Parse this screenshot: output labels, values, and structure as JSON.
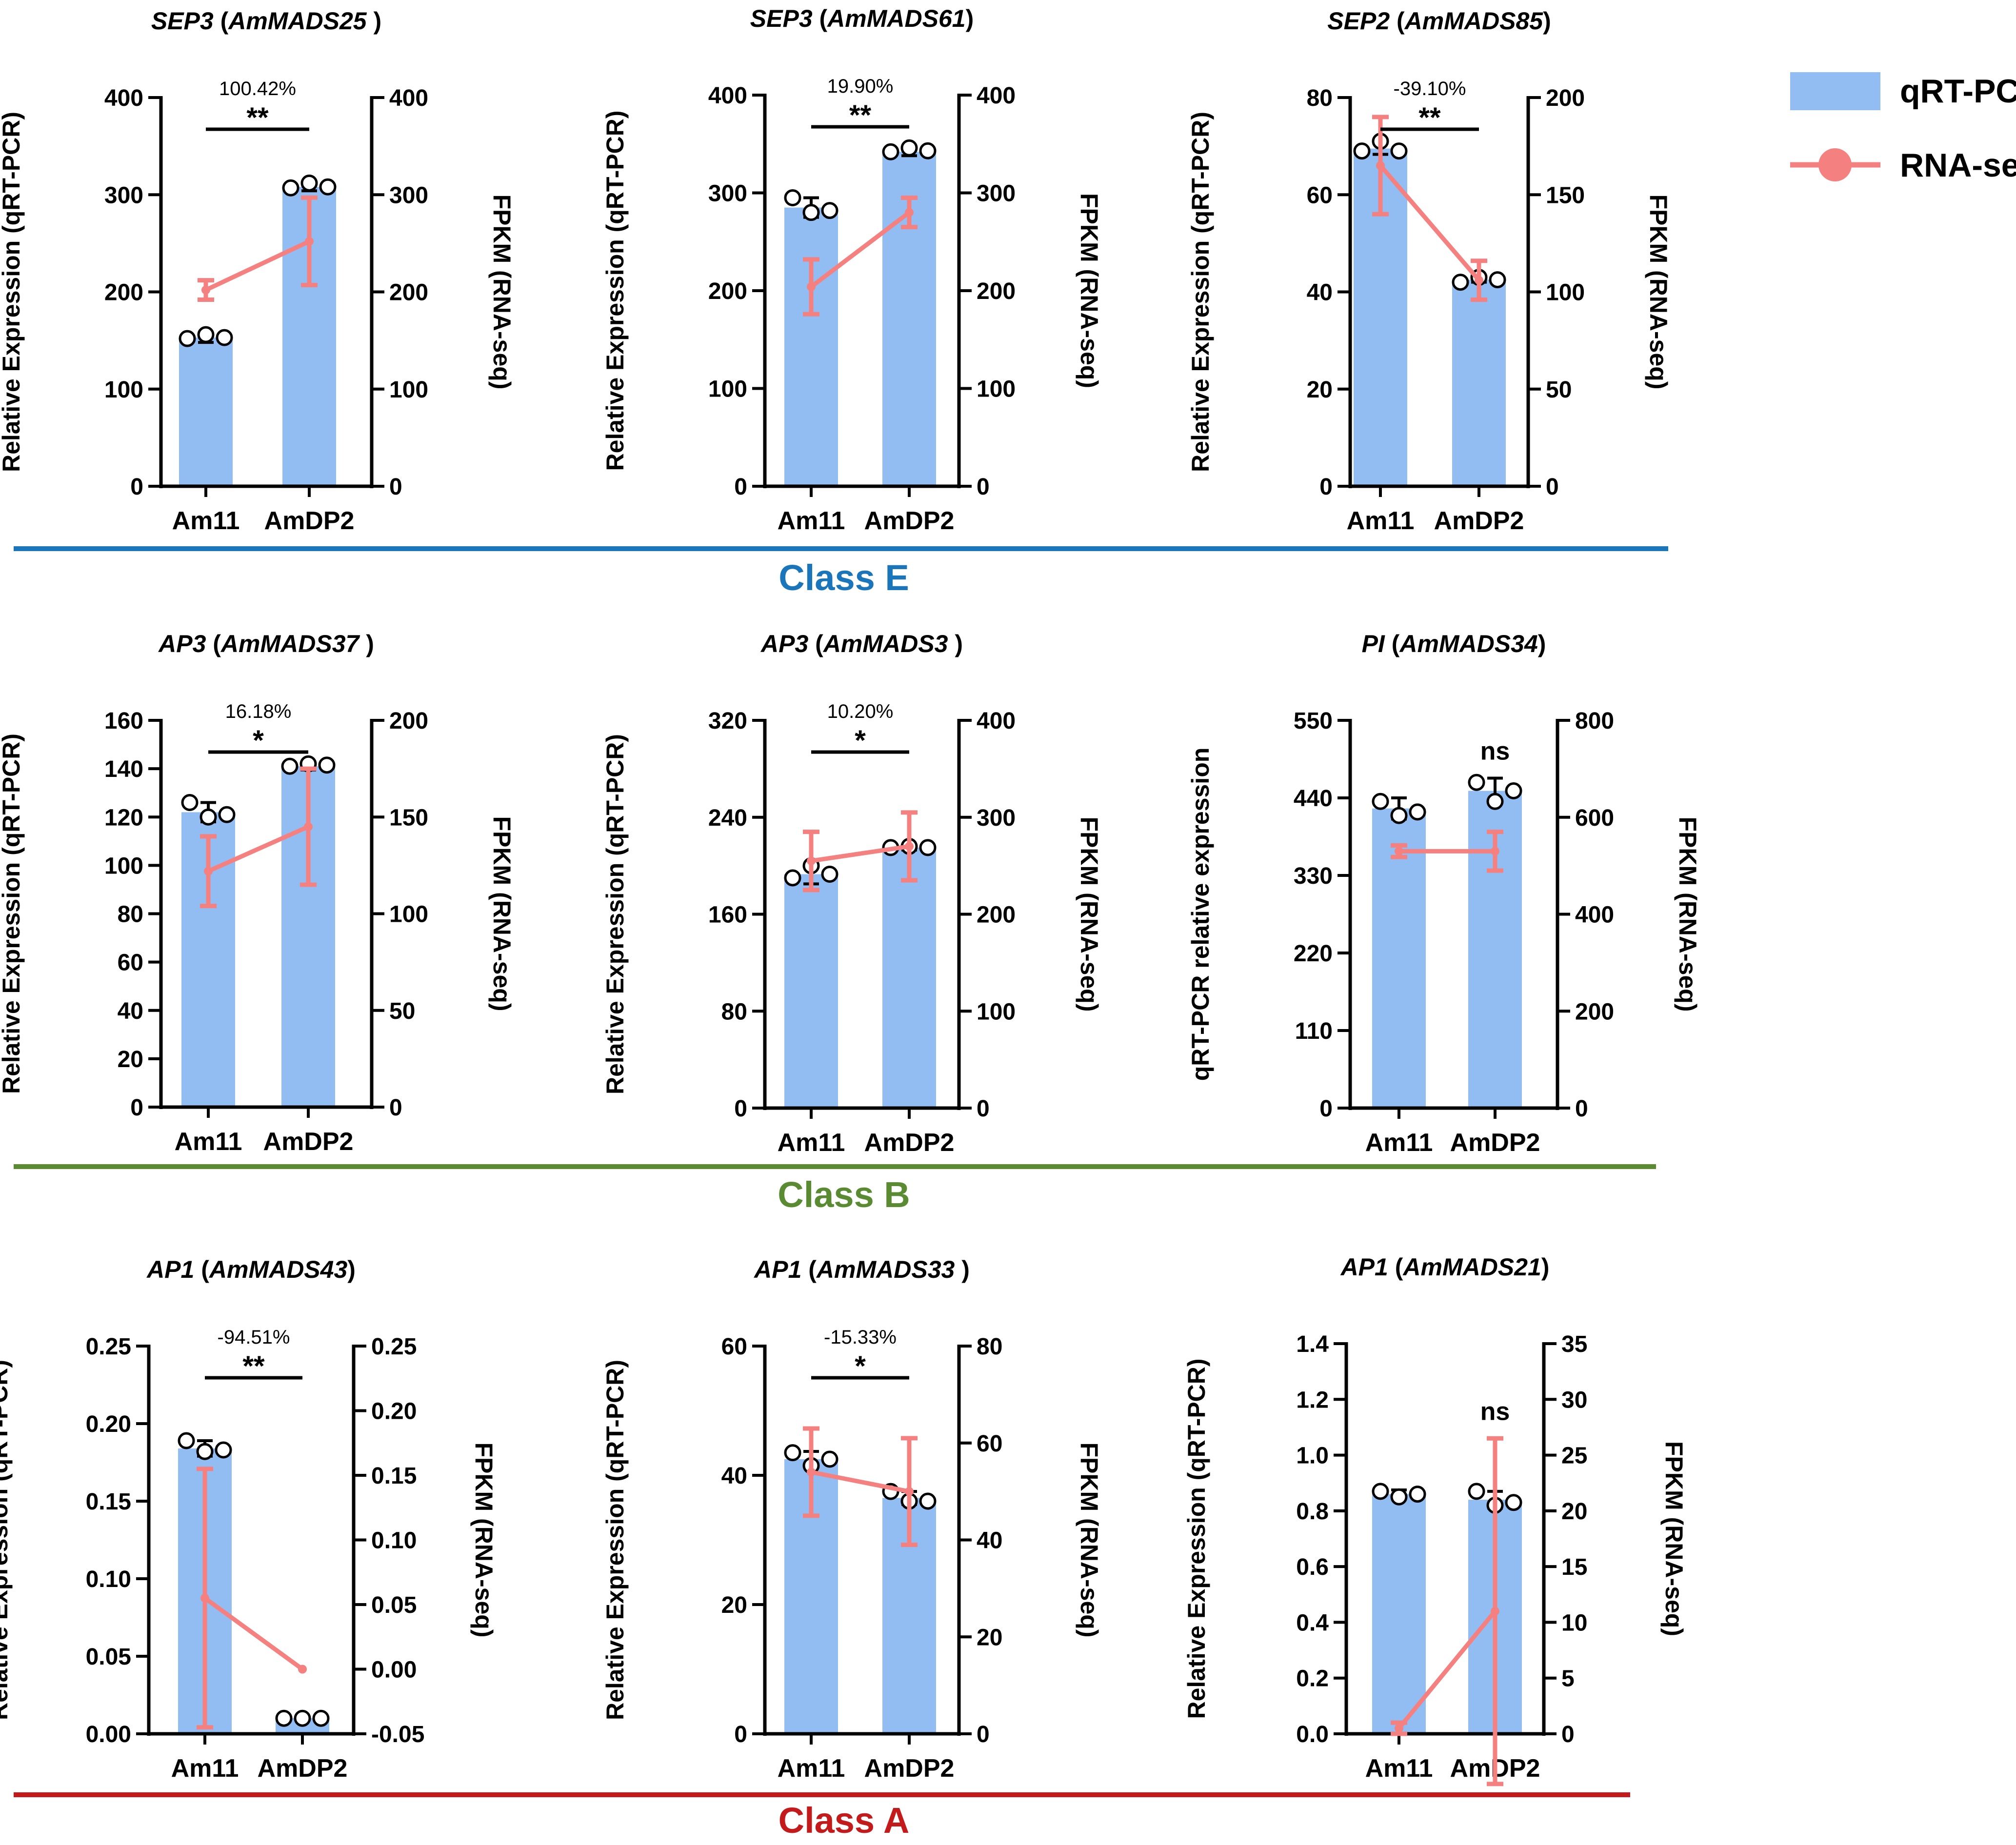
{
  "colors": {
    "bar": "#92bdf3",
    "line": "#f48080",
    "classE": "#1b75bb",
    "classB": "#5a8b32",
    "classA": "#c31b1b"
  },
  "legend": {
    "bar_label": "qRT-PCR",
    "line_label": "RNA-seq"
  },
  "classes": [
    {
      "label": "Class E",
      "color": "#1b75bb"
    },
    {
      "label": "Class B",
      "color": "#5a8b32"
    },
    {
      "label": "Class A",
      "color": "#c31b1b"
    }
  ],
  "chart_data": [
    {
      "type": "bar",
      "gene": "SEP3",
      "title_id": "AmMADS25",
      "title_suffix": " )",
      "categories": [
        "Am11",
        "AmDP2"
      ],
      "ylabel": "Relative Expression (qRT-PCR)",
      "y2label": "FPKM (RNA-seq)",
      "ylim": [
        0,
        400
      ],
      "yticks": [
        0,
        100,
        200,
        300,
        400
      ],
      "yticklabels": [
        "0",
        "100",
        "200",
        "300",
        "400"
      ],
      "y2lim": [
        0,
        400
      ],
      "y2ticks": [
        0,
        100,
        200,
        300,
        400
      ],
      "y2ticklabels": [
        "0",
        "100",
        "200",
        "300",
        "400"
      ],
      "bars": [
        153,
        308
      ],
      "bar_err": [
        5,
        4
      ],
      "points": [
        [
          152,
          156,
          153
        ],
        [
          307,
          312,
          308
        ]
      ],
      "line": [
        202,
        252
      ],
      "line_err": [
        10,
        45
      ],
      "annotation": {
        "percent": "100.42%",
        "sig": "**"
      }
    },
    {
      "type": "bar",
      "gene": "SEP3",
      "title_id": "AmMADS61",
      "title_suffix": ")",
      "categories": [
        "Am11",
        "AmDP2"
      ],
      "ylabel": "Relative Expression (qRT-PCR)",
      "y2label": "FPKM (RNA-seq)",
      "ylim": [
        0,
        400
      ],
      "yticks": [
        0,
        100,
        200,
        300,
        400
      ],
      "yticklabels": [
        "0",
        "100",
        "200",
        "300",
        "400"
      ],
      "y2lim": [
        0,
        400
      ],
      "y2ticks": [
        0,
        100,
        200,
        300,
        400
      ],
      "y2ticklabels": [
        "0",
        "100",
        "200",
        "300",
        "400"
      ],
      "bars": [
        285,
        342
      ],
      "bar_err": [
        10,
        4
      ],
      "points": [
        [
          295,
          280,
          282
        ],
        [
          342,
          346,
          343
        ]
      ],
      "line": [
        204,
        280
      ],
      "line_err": [
        28,
        15
      ],
      "annotation": {
        "percent": "19.90%",
        "sig": "**"
      }
    },
    {
      "type": "bar",
      "gene": "SEP2",
      "title_id": "AmMADS85",
      "title_suffix": ")",
      "categories": [
        "Am11",
        "AmDP2"
      ],
      "ylabel": "Relative Expression (qRT-PCR)",
      "y2label": "FPKM (RNA-seq)",
      "ylim": [
        0,
        80
      ],
      "yticks": [
        0,
        20,
        40,
        60,
        80
      ],
      "yticklabels": [
        "0",
        "20",
        "40",
        "60",
        "80"
      ],
      "y2lim": [
        0,
        200
      ],
      "y2ticks": [
        0,
        50,
        100,
        150,
        200
      ],
      "y2ticklabels": [
        "0",
        "50",
        "100",
        "150",
        "200"
      ],
      "bars": [
        69.5,
        42.5
      ],
      "bar_err": [
        1.2,
        0.5
      ],
      "points": [
        [
          69,
          71,
          69
        ],
        [
          42,
          43,
          42.5
        ]
      ],
      "line": [
        165,
        106
      ],
      "line_err": [
        25,
        10
      ],
      "annotation": {
        "percent": "-39.10%",
        "sig": "**"
      }
    },
    {
      "type": "bar",
      "gene": "AP3",
      "title_id": "AmMADS37",
      "title_suffix": " )",
      "categories": [
        "Am11",
        "AmDP2"
      ],
      "ylabel": "Relative Expression (qRT-PCR)",
      "y2label": "FPKM (RNA-seq)",
      "ylim": [
        0,
        160
      ],
      "yticks": [
        0,
        20,
        40,
        60,
        80,
        100,
        120,
        140,
        160
      ],
      "yticklabels": [
        "0",
        "20",
        "40",
        "60",
        "80",
        "100",
        "120",
        "140",
        "160"
      ],
      "y2lim": [
        0,
        200
      ],
      "y2ticks": [
        0,
        50,
        100,
        150,
        200
      ],
      "y2ticklabels": [
        "0",
        "50",
        "100",
        "150",
        "200"
      ],
      "bars": [
        122,
        141
      ],
      "bar_err": [
        4,
        1.5
      ],
      "points": [
        [
          126,
          120,
          121
        ],
        [
          141,
          142,
          141.5
        ]
      ],
      "line": [
        122,
        145
      ],
      "line_err": [
        18,
        30
      ],
      "annotation": {
        "percent": "16.18%",
        "sig": "*"
      }
    },
    {
      "type": "bar",
      "gene": "AP3",
      "title_id": "AmMADS3",
      "title_suffix": " )",
      "categories": [
        "Am11",
        "AmDP2"
      ],
      "ylabel": "Relative Expression (qRT-PCR)",
      "y2label": "FPKM (RNA-seq)",
      "ylim": [
        0,
        320
      ],
      "yticks": [
        0,
        80,
        160,
        240,
        320
      ],
      "yticklabels": [
        "0",
        "80",
        "160",
        "240",
        "320"
      ],
      "y2lim": [
        0,
        400
      ],
      "y2ticks": [
        0,
        100,
        200,
        300,
        400
      ],
      "y2ticklabels": [
        "0",
        "100",
        "200",
        "300",
        "400"
      ],
      "bars": [
        193,
        215
      ],
      "bar_err": [
        8,
        2
      ],
      "points": [
        [
          190,
          200,
          193
        ],
        [
          215,
          216,
          215
        ]
      ],
      "line": [
        255,
        270
      ],
      "line_err": [
        30,
        35
      ],
      "annotation": {
        "percent": "10.20%",
        "sig": "*"
      }
    },
    {
      "type": "bar",
      "gene": "PI",
      "title_id": "AmMADS34",
      "title_suffix": ")",
      "categories": [
        "Am11",
        "AmDP2"
      ],
      "ylabel": "qRT-PCR relative expression",
      "y2label": "FPKM (RNA-seq)",
      "ylim": [
        0,
        550
      ],
      "yticks": [
        0,
        110,
        220,
        330,
        440,
        550
      ],
      "yticklabels": [
        "0",
        "110",
        "220",
        "330",
        "440",
        "550"
      ],
      "y2lim": [
        0,
        800
      ],
      "y2ticks": [
        0,
        200,
        400,
        600,
        800
      ],
      "y2ticklabels": [
        "0",
        "200",
        "400",
        "600",
        "800"
      ],
      "bars": [
        425,
        450
      ],
      "bar_err": [
        15,
        18
      ],
      "points": [
        [
          435,
          415,
          420
        ],
        [
          462,
          435,
          450
        ]
      ],
      "line": [
        530,
        530
      ],
      "line_err": [
        12,
        40
      ],
      "annotation": {
        "percent": "",
        "sig": "ns"
      }
    },
    {
      "type": "bar",
      "gene": "AP1",
      "title_id": "AmMADS43",
      "title_suffix": ")",
      "categories": [
        "Am11",
        "AmDP2"
      ],
      "ylabel": "Relative Expression (qRT-PCR)",
      "y2label": "FPKM (RNA-seq)",
      "ylim": [
        0,
        0.25
      ],
      "yticks": [
        0,
        0.05,
        0.1,
        0.15,
        0.2,
        0.25
      ],
      "yticklabels": [
        "0.00",
        "0.05",
        "0.10",
        "0.15",
        "0.20",
        "0.25"
      ],
      "y2lim": [
        -0.05,
        0.25
      ],
      "y2ticks": [
        -0.05,
        0,
        0.05,
        0.1,
        0.15,
        0.2,
        0.25
      ],
      "y2ticklabels": [
        "-0.05",
        "0.00",
        "0.05",
        "0.10",
        "0.15",
        "0.20",
        "0.25"
      ],
      "bars": [
        0.184,
        0.01
      ],
      "bar_err": [
        0.005,
        0.0005
      ],
      "points": [
        [
          0.189,
          0.182,
          0.183
        ],
        [
          0.01,
          0.01,
          0.01
        ]
      ],
      "line": [
        0.055,
        0.0
      ],
      "line_err": [
        0.1,
        0.0
      ],
      "annotation": {
        "percent": "-94.51%",
        "sig": "**"
      }
    },
    {
      "type": "bar",
      "gene": "AP1",
      "title_id": "AmMADS33",
      "title_suffix": " )",
      "categories": [
        "Am11",
        "AmDP2"
      ],
      "ylabel": "Relative Expression (qRT-PCR)",
      "y2label": "FPKM (RNA-seq)",
      "ylim": [
        0,
        60
      ],
      "yticks": [
        0,
        20,
        40,
        60
      ],
      "yticklabels": [
        "0",
        "20",
        "40",
        "60"
      ],
      "y2lim": [
        0,
        80
      ],
      "y2ticks": [
        0,
        20,
        40,
        60,
        80
      ],
      "y2ticklabels": [
        "0",
        "20",
        "40",
        "60",
        "80"
      ],
      "bars": [
        42.5,
        36.5
      ],
      "bar_err": [
        1.2,
        1.0
      ],
      "points": [
        [
          43.5,
          41.5,
          42.5
        ],
        [
          37.5,
          36,
          36
        ]
      ],
      "line": [
        54,
        50
      ],
      "line_err": [
        9,
        11
      ],
      "annotation": {
        "percent": "-15.33%",
        "sig": "*"
      }
    },
    {
      "type": "bar",
      "gene": "AP1",
      "title_id": "AmMADS21",
      "title_suffix": ")",
      "categories": [
        "Am11",
        "AmDP2"
      ],
      "ylabel": "Relative Expression (qRT-PCR)",
      "y2label": "FPKM (RNA-seq)",
      "ylim": [
        0,
        1.4
      ],
      "yticks": [
        0,
        0.2,
        0.4,
        0.6,
        0.8,
        1.0,
        1.2,
        1.4
      ],
      "yticklabels": [
        "0.0",
        "0.2",
        "0.4",
        "0.6",
        "0.8",
        "1.0",
        "1.2",
        "1.4"
      ],
      "y2lim": [
        0,
        35
      ],
      "y2ticks": [
        0,
        5,
        10,
        15,
        20,
        25,
        30,
        35
      ],
      "y2ticklabels": [
        "0",
        "5",
        "10",
        "15",
        "20",
        "25",
        "30",
        "35"
      ],
      "bars": [
        0.86,
        0.84
      ],
      "bar_err": [
        0.015,
        0.03
      ],
      "points": [
        [
          0.87,
          0.85,
          0.86
        ],
        [
          0.87,
          0.82,
          0.83
        ]
      ],
      "line": [
        0.5,
        11
      ],
      "line_err": [
        0.5,
        15.5
      ],
      "annotation": {
        "percent": "",
        "sig": "ns"
      }
    }
  ]
}
